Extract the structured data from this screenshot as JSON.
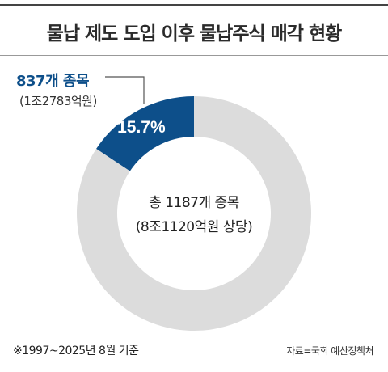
{
  "title": "물납 제도 도입 이후 물납주식 매각 현황",
  "callout": {
    "value": "837개 종목",
    "amount": "(1조2783억원)"
  },
  "center": {
    "line1": "총 1187개 종목",
    "line2": "(8조1120억원 상당)"
  },
  "footnote": "※1997~2025년 8월 기준",
  "source": "자료=국회 예산정책처",
  "colors": {
    "highlight": "#0d4f8a",
    "rest": "#dcdcdc"
  },
  "chart_data": {
    "type": "pie",
    "title": "물납 제도 도입 이후 물납주식 매각 현황",
    "slices": [
      {
        "label": "15.7%",
        "value": 15.7,
        "color": "#0d4f8a"
      },
      {
        "label": "",
        "value": 84.3,
        "color": "#dcdcdc"
      }
    ],
    "donut": true
  }
}
